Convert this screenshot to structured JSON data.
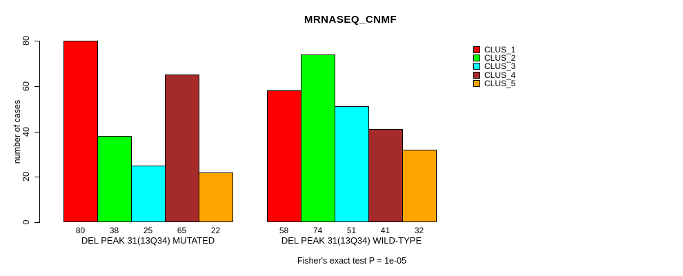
{
  "chart_data": {
    "type": "bar",
    "title": "MRNASEQ_CNMF",
    "ylabel": "number of cases",
    "xlabel": "",
    "ylim": [
      0,
      80
    ],
    "yticks": [
      0,
      20,
      40,
      60,
      80
    ],
    "grid": false,
    "categories": [
      "CLUS_1",
      "CLUS_2",
      "CLUS_3",
      "CLUS_4",
      "CLUS_5"
    ],
    "colors": [
      "#FF0000",
      "#00FF00",
      "#00FFFF",
      "#A52A2A",
      "#FFA500"
    ],
    "groups": [
      {
        "label": "DEL PEAK 31(13Q34) MUTATED",
        "values": [
          80,
          38,
          25,
          65,
          22
        ]
      },
      {
        "label": "DEL PEAK 31(13Q34) WILD-TYPE",
        "values": [
          58,
          74,
          51,
          41,
          32
        ]
      }
    ],
    "bar_value_labels_shown": true,
    "legend": {
      "position": "right",
      "entries": [
        {
          "label": "CLUS_1",
          "color": "#FF0000"
        },
        {
          "label": "CLUS_2",
          "color": "#00FF00"
        },
        {
          "label": "CLUS_3",
          "color": "#00FFFF"
        },
        {
          "label": "CLUS_4",
          "color": "#A52A2A"
        },
        {
          "label": "CLUS_5",
          "color": "#FFA500"
        }
      ]
    },
    "annotation": "Fisher's exact test P = 1e-05"
  }
}
